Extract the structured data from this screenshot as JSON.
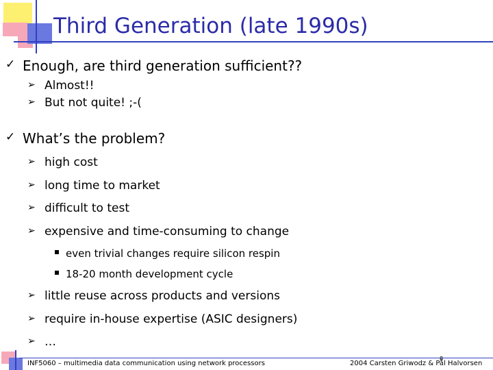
{
  "title": "Third Generation (late 1990s)",
  "check_marker": "✓",
  "arrow_marker": "➢",
  "sections": [
    {
      "text": "Enough, are third generation sufficient??",
      "items": [
        {
          "text": "Almost!!"
        },
        {
          "text": "But not quite!  ;-("
        }
      ]
    },
    {
      "text": "What’s the problem?",
      "items": [
        {
          "text": "high cost"
        },
        {
          "text": "long time to market"
        },
        {
          "text": "difficult to test"
        },
        {
          "text": "expensive and time-consuming to change",
          "subitems": [
            "even trivial changes require silicon respin",
            "18-20 month development cycle"
          ]
        },
        {
          "text": "little reuse across products and versions"
        },
        {
          "text": "require in-house expertise (ASIC designers)"
        },
        {
          "text": "…"
        }
      ]
    }
  ],
  "footer": {
    "left": "INF5060 – multimedia data communication using network processors",
    "right": "2004  Carsten Griwodz & Pål Halvorsen",
    "page_number": "8"
  },
  "colors": {
    "title": "#2b2ba8",
    "accent_line": "#3040c0",
    "yellow": "#fdf070",
    "pink": "#f7a8b8",
    "blue": "#6a78e0"
  }
}
